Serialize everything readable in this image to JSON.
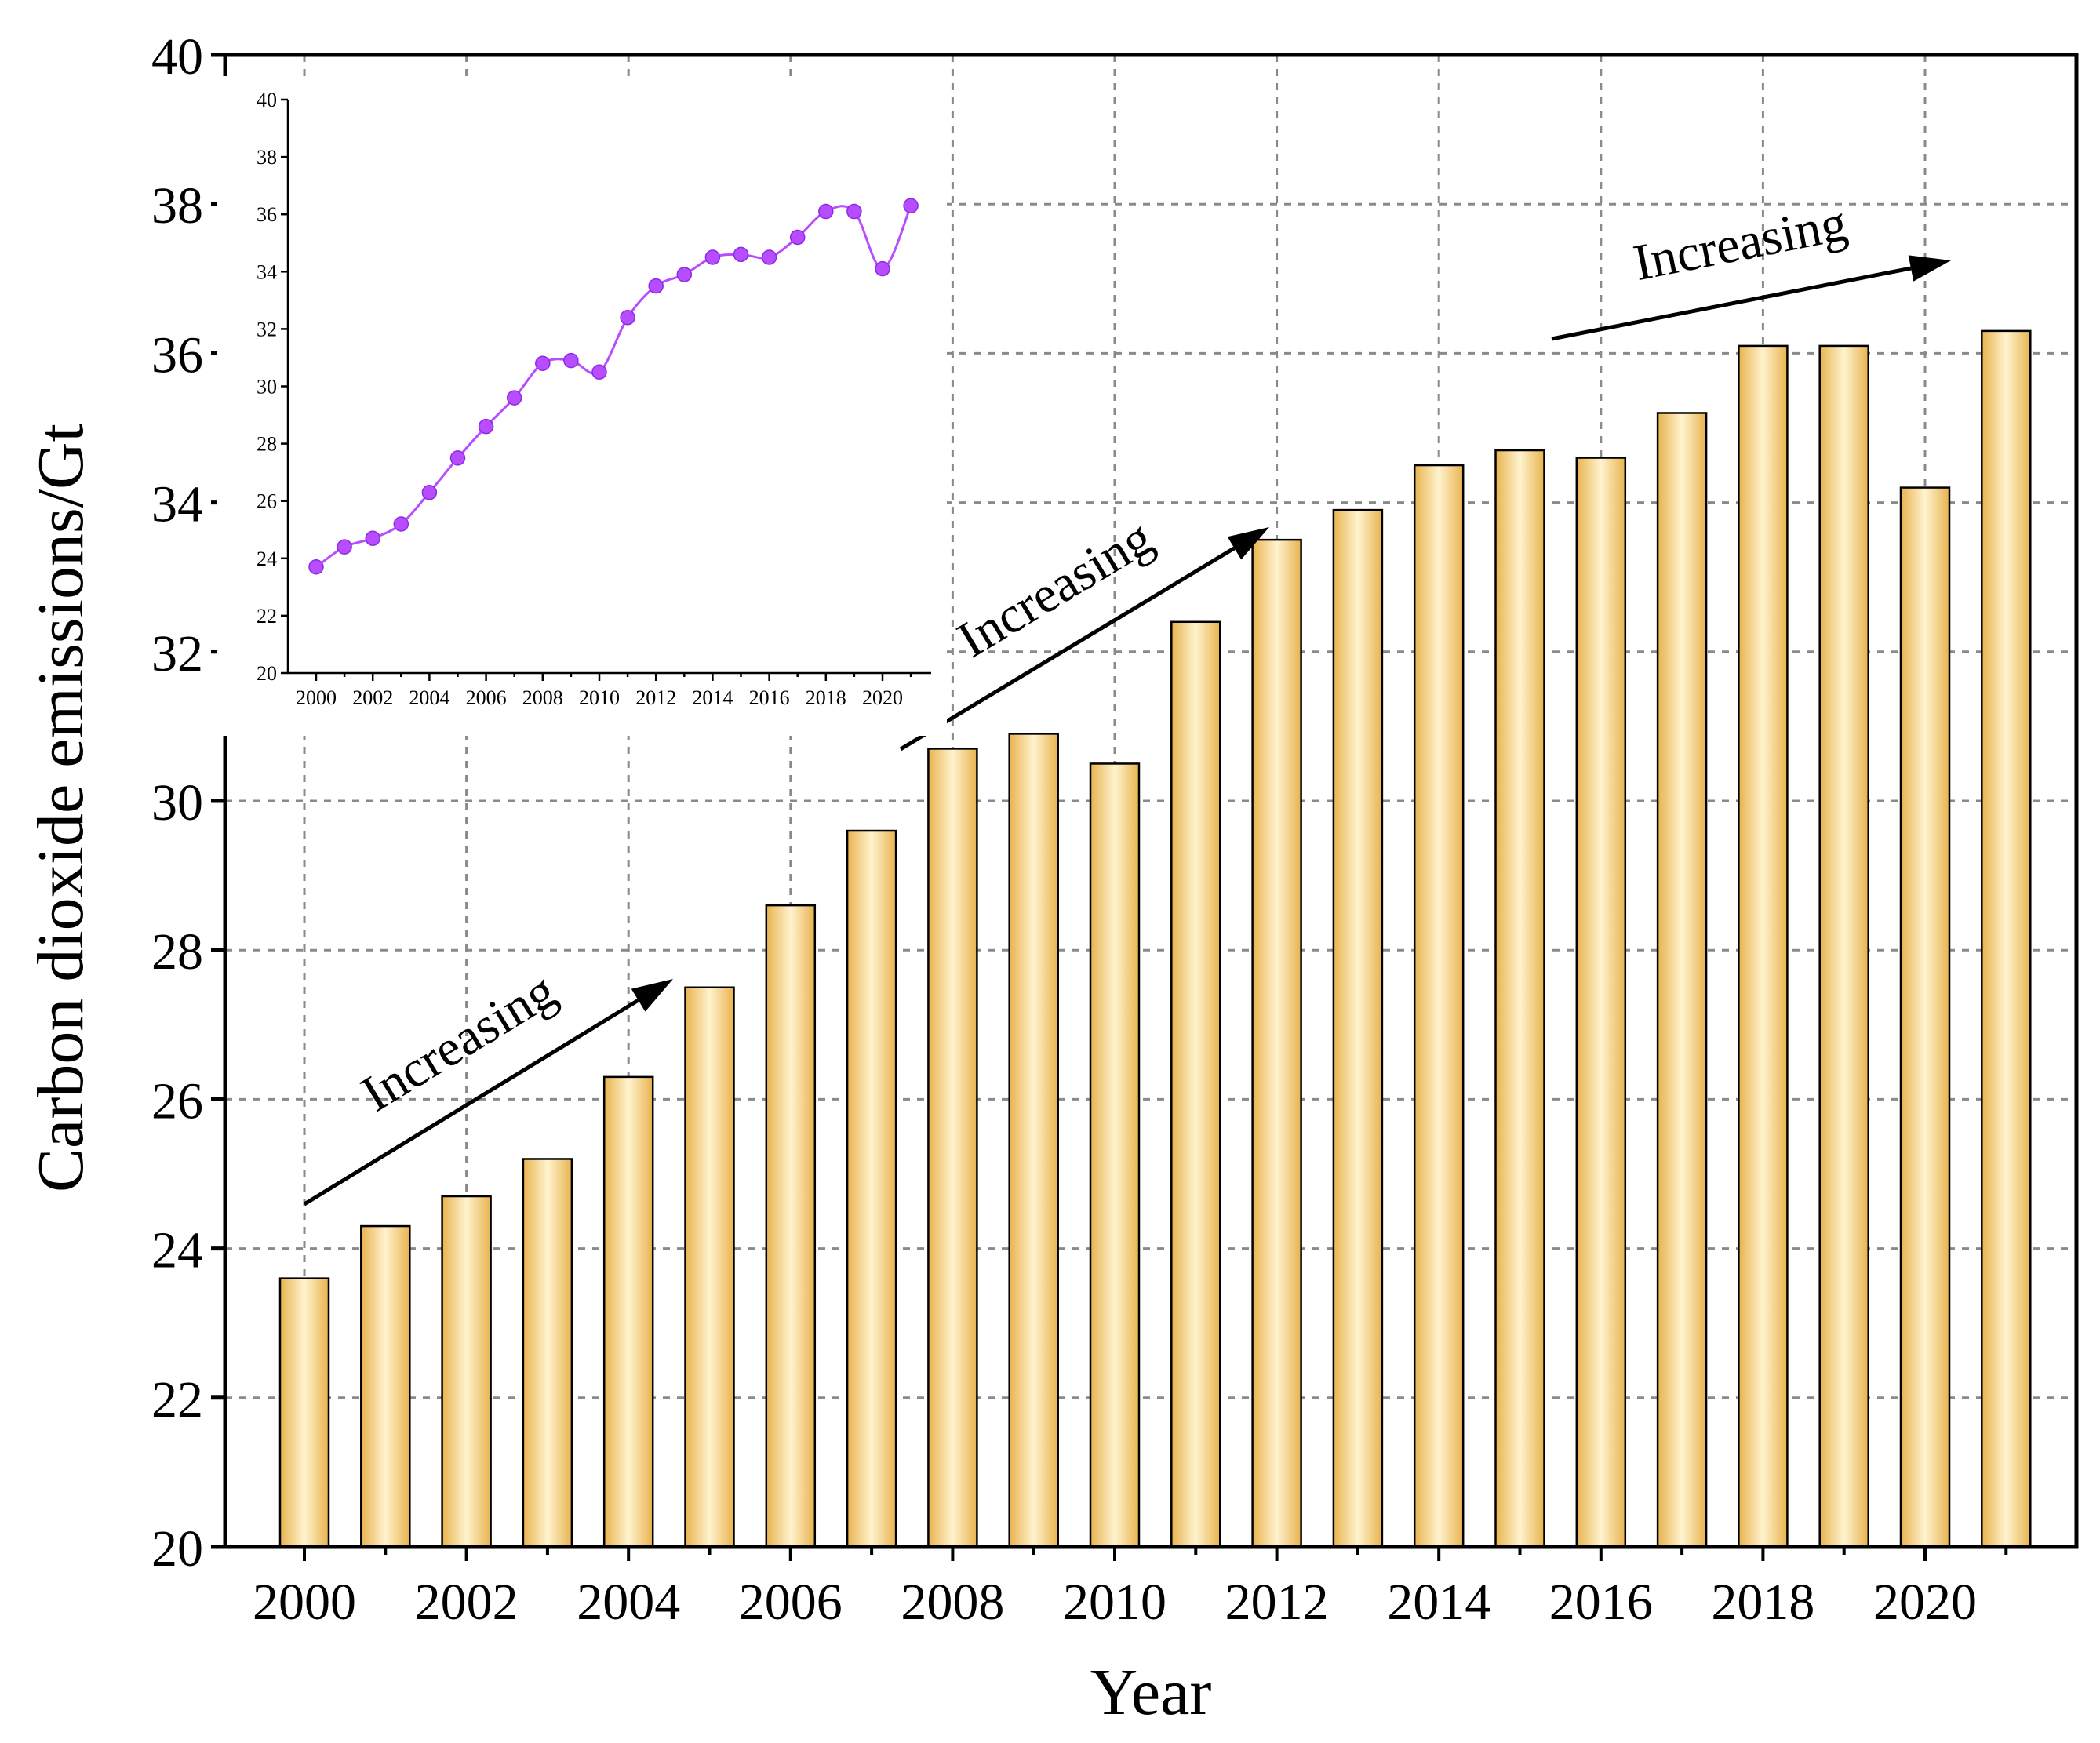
{
  "chart_data": [
    {
      "type": "bar",
      "xlabel": "Year",
      "ylabel": "Carbon dioxide emissions/Gt",
      "ylim": [
        20,
        40
      ],
      "yticks": [
        20,
        22,
        24,
        26,
        28,
        30,
        32,
        34,
        36,
        38,
        40
      ],
      "xticks": [
        "2000",
        "2002",
        "2004",
        "2006",
        "2008",
        "2010",
        "2012",
        "2014",
        "2016",
        "2018",
        "2020"
      ],
      "categories": [
        "2000",
        "2001",
        "2002",
        "2003",
        "2004",
        "2005",
        "2006",
        "2007",
        "2008",
        "2009",
        "2010",
        "2011",
        "2012",
        "2013",
        "2014",
        "2015",
        "2016",
        "2017",
        "2018",
        "2019",
        "2020",
        "2021"
      ],
      "values": [
        23.6,
        24.3,
        24.7,
        25.2,
        26.3,
        27.5,
        28.6,
        29.6,
        30.7,
        30.9,
        30.5,
        32.4,
        33.5,
        33.9,
        34.5,
        34.7,
        34.6,
        35.2,
        36.1,
        36.1,
        34.2,
        36.3
      ],
      "grid": true,
      "bar_color": "#f5cf78",
      "annotations": [
        {
          "text": "Increasing",
          "from_year": 2000,
          "to_year": 2004
        },
        {
          "text": "Increasing",
          "from_year": 2007,
          "to_year": 2011
        },
        {
          "text": "Increasing",
          "from_year": 2015,
          "to_year": 2020
        }
      ]
    },
    {
      "type": "line",
      "ylim": [
        20,
        40
      ],
      "yticks": [
        20,
        22,
        24,
        26,
        28,
        30,
        32,
        34,
        36,
        38,
        40
      ],
      "xticks": [
        "2000",
        "2002",
        "2004",
        "2006",
        "2008",
        "2010",
        "2012",
        "2014",
        "2016",
        "2018",
        "2020"
      ],
      "x": [
        2000,
        2001,
        2002,
        2003,
        2004,
        2005,
        2006,
        2007,
        2008,
        2009,
        2010,
        2011,
        2012,
        2013,
        2014,
        2015,
        2016,
        2017,
        2018,
        2019,
        2020,
        2021
      ],
      "values": [
        23.7,
        24.4,
        24.7,
        25.2,
        26.3,
        27.5,
        28.6,
        29.6,
        30.8,
        30.9,
        30.5,
        32.4,
        33.5,
        33.9,
        34.5,
        34.6,
        34.5,
        35.2,
        36.1,
        36.1,
        34.1,
        36.3
      ],
      "line_color": "#b84dff",
      "grid": false
    }
  ]
}
